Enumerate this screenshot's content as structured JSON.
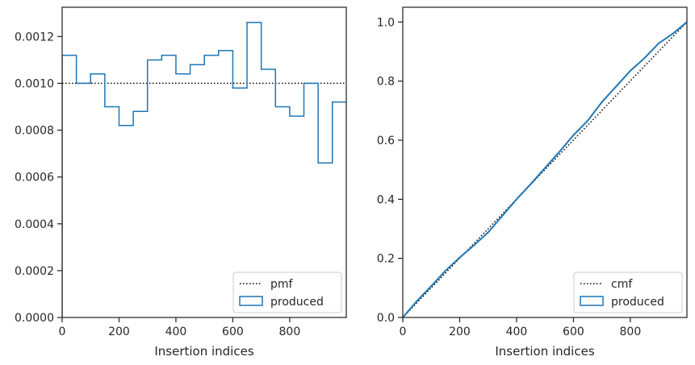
{
  "chart_data": [
    {
      "type": "histogram-step",
      "xlabel": "Insertion indices",
      "ylabel": "",
      "xlim": [
        0,
        999
      ],
      "ylim": [
        0,
        0.001325
      ],
      "xticks": [
        0,
        200,
        400,
        600,
        800
      ],
      "xtick_labels": [
        "0",
        "200",
        "400",
        "600",
        "800"
      ],
      "yticks": [
        0,
        0.0002,
        0.0004,
        0.0006,
        0.0008,
        0.001,
        0.0012
      ],
      "ytick_labels": [
        "0.0000",
        "0.0002",
        "0.0004",
        "0.0006",
        "0.0008",
        "0.0010",
        "0.0012"
      ],
      "legend_position": "lower-right",
      "reference": {
        "name": "pmf",
        "style": "dotted",
        "color": "#000000",
        "value": 0.001
      },
      "series": [
        {
          "name": "produced",
          "color": "#1f77b4",
          "bin_width": 50,
          "bin_starts": [
            0,
            50,
            100,
            150,
            200,
            250,
            300,
            350,
            400,
            450,
            500,
            550,
            600,
            650,
            700,
            750,
            800,
            850,
            900,
            950
          ],
          "values": [
            0.00112,
            0.001,
            0.00104,
            0.0009,
            0.00082,
            0.00088,
            0.0011,
            0.00112,
            0.00104,
            0.00108,
            0.00112,
            0.00114,
            0.00098,
            0.00126,
            0.00106,
            0.0009,
            0.00086,
            0.001,
            0.00066,
            0.00092
          ]
        }
      ]
    },
    {
      "type": "line",
      "xlabel": "Insertion indices",
      "ylabel": "",
      "xlim": [
        0,
        999
      ],
      "ylim": [
        0,
        1.05
      ],
      "xticks": [
        0,
        200,
        400,
        600,
        800
      ],
      "xtick_labels": [
        "0",
        "200",
        "400",
        "600",
        "800"
      ],
      "yticks": [
        0,
        0.2,
        0.4,
        0.6,
        0.8,
        1.0
      ],
      "ytick_labels": [
        "0.0",
        "0.2",
        "0.4",
        "0.6",
        "0.8",
        "1.0"
      ],
      "legend_position": "lower-right",
      "reference": {
        "name": "cmf",
        "style": "dotted",
        "color": "#000000",
        "x": [
          0,
          999
        ],
        "y": [
          0,
          1.0
        ]
      },
      "series": [
        {
          "name": "produced",
          "color": "#1f77b4",
          "x": [
            0,
            50,
            100,
            150,
            200,
            250,
            300,
            350,
            400,
            450,
            500,
            550,
            600,
            650,
            700,
            750,
            800,
            850,
            900,
            950,
            999
          ],
          "y": [
            0.0,
            0.056,
            0.106,
            0.158,
            0.203,
            0.244,
            0.288,
            0.344,
            0.4,
            0.452,
            0.506,
            0.56,
            0.617,
            0.666,
            0.729,
            0.782,
            0.835,
            0.878,
            0.928,
            0.961,
            1.0
          ]
        }
      ]
    }
  ]
}
